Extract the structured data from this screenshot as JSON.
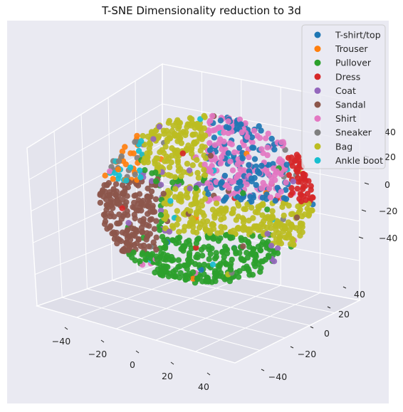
{
  "chart_data": {
    "type": "scatter",
    "projection": "3d",
    "title": "T-SNE Dimensionality reduction to 3d",
    "legend_position": "top-right",
    "grid": true,
    "x_ticks": [
      "−40",
      "−20",
      "0",
      "20",
      "40"
    ],
    "y_ticks": [
      "−40",
      "−20",
      "0",
      "20",
      "40"
    ],
    "z_ticks": [
      "40",
      "20",
      "0",
      "−20",
      "−40"
    ],
    "series": [
      {
        "name": "T-shirt/top",
        "color": "#1f77b4"
      },
      {
        "name": "Trouser",
        "color": "#ff7f0e"
      },
      {
        "name": "Pullover",
        "color": "#2ca02c"
      },
      {
        "name": "Dress",
        "color": "#d62728"
      },
      {
        "name": "Coat",
        "color": "#9467bd"
      },
      {
        "name": "Sandal",
        "color": "#8c564b"
      },
      {
        "name": "Shirt",
        "color": "#e377c2"
      },
      {
        "name": "Sneaker",
        "color": "#7f7f7f"
      },
      {
        "name": "Bag",
        "color": "#bcbd22"
      },
      {
        "name": "Ankle boot",
        "color": "#17becf"
      }
    ]
  }
}
